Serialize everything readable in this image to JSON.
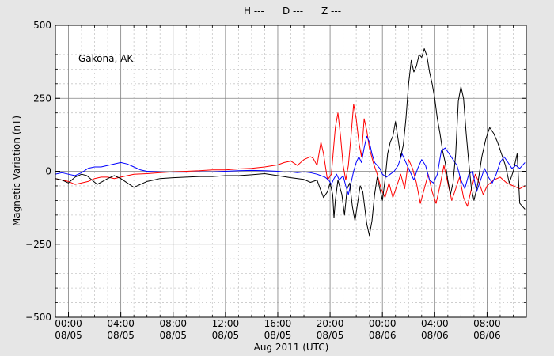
{
  "chart_data": {
    "type": "line",
    "station_label": "Gakona, AK",
    "ylabel": "Magnetic Variation (nT)",
    "xlabel": "Aug 2011 (UTC)",
    "ylim": [
      -500,
      500
    ],
    "yticks": [
      500,
      250,
      0,
      -250,
      -500
    ],
    "ytick_labels": [
      "500",
      "250",
      "0",
      "−250",
      "−500"
    ],
    "xlim_hours": [
      -1,
      35
    ],
    "xticks_hours": [
      0,
      4,
      8,
      12,
      16,
      20,
      24,
      28,
      32
    ],
    "xtick_labels": [
      {
        "time": "00:00",
        "date": "08/05"
      },
      {
        "time": "04:00",
        "date": "08/05"
      },
      {
        "time": "08:00",
        "date": "08/05"
      },
      {
        "time": "12:00",
        "date": "08/05"
      },
      {
        "time": "16:00",
        "date": "08/05"
      },
      {
        "time": "20:00",
        "date": "08/05"
      },
      {
        "time": "00:00",
        "date": "08/06"
      },
      {
        "time": "04:00",
        "date": "08/06"
      },
      {
        "time": "08:00",
        "date": "08/06"
      }
    ],
    "grid": {
      "major": true,
      "minor": true
    },
    "legend_placement": "top-center",
    "series": [
      {
        "name": "H ---",
        "color": "#000000",
        "points": [
          [
            -1,
            -25
          ],
          [
            -0.5,
            -30
          ],
          [
            0,
            -40
          ],
          [
            0.5,
            -20
          ],
          [
            1,
            -10
          ],
          [
            1.4,
            -15
          ],
          [
            1.8,
            -30
          ],
          [
            2.2,
            -45
          ],
          [
            2.6,
            -35
          ],
          [
            3,
            -25
          ],
          [
            3.5,
            -15
          ],
          [
            4,
            -25
          ],
          [
            4.5,
            -40
          ],
          [
            5,
            -55
          ],
          [
            5.5,
            -45
          ],
          [
            6,
            -35
          ],
          [
            6.5,
            -30
          ],
          [
            7,
            -25
          ],
          [
            8,
            -22
          ],
          [
            9,
            -20
          ],
          [
            10,
            -18
          ],
          [
            11,
            -18
          ],
          [
            12,
            -15
          ],
          [
            13,
            -15
          ],
          [
            14,
            -12
          ],
          [
            15,
            -8
          ],
          [
            16,
            -15
          ],
          [
            17,
            -22
          ],
          [
            18,
            -28
          ],
          [
            18.5,
            -38
          ],
          [
            19,
            -30
          ],
          [
            19.2,
            -55
          ],
          [
            19.5,
            -90
          ],
          [
            19.8,
            -70
          ],
          [
            20,
            -40
          ],
          [
            20.2,
            -80
          ],
          [
            20.3,
            -160
          ],
          [
            20.4,
            -100
          ],
          [
            20.6,
            -30
          ],
          [
            20.9,
            -80
          ],
          [
            21.1,
            -150
          ],
          [
            21.3,
            -60
          ],
          [
            21.5,
            -40
          ],
          [
            21.7,
            -120
          ],
          [
            21.9,
            -170
          ],
          [
            22.1,
            -110
          ],
          [
            22.3,
            -50
          ],
          [
            22.5,
            -70
          ],
          [
            22.8,
            -180
          ],
          [
            23,
            -220
          ],
          [
            23.2,
            -170
          ],
          [
            23.4,
            -80
          ],
          [
            23.6,
            -20
          ],
          [
            23.8,
            -60
          ],
          [
            24,
            -100
          ],
          [
            24.2,
            -30
          ],
          [
            24.4,
            60
          ],
          [
            24.6,
            100
          ],
          [
            24.8,
            120
          ],
          [
            25,
            170
          ],
          [
            25.2,
            110
          ],
          [
            25.4,
            50
          ],
          [
            25.6,
            90
          ],
          [
            25.8,
            180
          ],
          [
            26,
            300
          ],
          [
            26.2,
            380
          ],
          [
            26.4,
            340
          ],
          [
            26.6,
            360
          ],
          [
            26.8,
            400
          ],
          [
            27,
            390
          ],
          [
            27.2,
            420
          ],
          [
            27.4,
            395
          ],
          [
            27.6,
            340
          ],
          [
            27.8,
            300
          ],
          [
            28,
            250
          ],
          [
            28.2,
            180
          ],
          [
            28.4,
            130
          ],
          [
            28.6,
            70
          ],
          [
            28.8,
            30
          ],
          [
            29,
            -30
          ],
          [
            29.2,
            -80
          ],
          [
            29.4,
            -40
          ],
          [
            29.6,
            60
          ],
          [
            29.8,
            240
          ],
          [
            30,
            290
          ],
          [
            30.2,
            250
          ],
          [
            30.4,
            130
          ],
          [
            30.6,
            30
          ],
          [
            30.8,
            -60
          ],
          [
            31,
            -100
          ],
          [
            31.3,
            -40
          ],
          [
            31.6,
            50
          ],
          [
            31.9,
            110
          ],
          [
            32.2,
            150
          ],
          [
            32.5,
            130
          ],
          [
            32.8,
            100
          ],
          [
            33.1,
            60
          ],
          [
            33.4,
            20
          ],
          [
            33.7,
            -40
          ],
          [
            34,
            0
          ],
          [
            34.3,
            60
          ],
          [
            34.5,
            -110
          ],
          [
            34.7,
            -120
          ],
          [
            34.9,
            -130
          ]
        ]
      },
      {
        "name": "D ---",
        "color": "#ff0000",
        "points": [
          [
            -1,
            -25
          ],
          [
            -0.5,
            -30
          ],
          [
            0,
            -35
          ],
          [
            0.5,
            -45
          ],
          [
            1,
            -40
          ],
          [
            1.5,
            -35
          ],
          [
            2,
            -25
          ],
          [
            2.5,
            -20
          ],
          [
            3,
            -20
          ],
          [
            3.5,
            -25
          ],
          [
            4,
            -20
          ],
          [
            4.5,
            -15
          ],
          [
            5,
            -10
          ],
          [
            6,
            -8
          ],
          [
            7,
            -5
          ],
          [
            8,
            -2
          ],
          [
            9,
            0
          ],
          [
            10,
            2
          ],
          [
            11,
            5
          ],
          [
            12,
            5
          ],
          [
            13,
            8
          ],
          [
            14,
            10
          ],
          [
            15,
            15
          ],
          [
            16,
            22
          ],
          [
            16.5,
            30
          ],
          [
            17,
            35
          ],
          [
            17.5,
            20
          ],
          [
            18,
            40
          ],
          [
            18.5,
            50
          ],
          [
            18.7,
            45
          ],
          [
            19,
            20
          ],
          [
            19.3,
            100
          ],
          [
            19.5,
            60
          ],
          [
            19.8,
            -30
          ],
          [
            20.1,
            -10
          ],
          [
            20.4,
            150
          ],
          [
            20.6,
            200
          ],
          [
            20.8,
            120
          ],
          [
            21,
            20
          ],
          [
            21.2,
            -30
          ],
          [
            21.4,
            20
          ],
          [
            21.6,
            120
          ],
          [
            21.8,
            230
          ],
          [
            22,
            180
          ],
          [
            22.2,
            100
          ],
          [
            22.4,
            50
          ],
          [
            22.6,
            180
          ],
          [
            22.8,
            140
          ],
          [
            23,
            80
          ],
          [
            23.3,
            30
          ],
          [
            23.6,
            -10
          ],
          [
            23.9,
            -60
          ],
          [
            24.2,
            -90
          ],
          [
            24.5,
            -40
          ],
          [
            24.8,
            -90
          ],
          [
            25.1,
            -50
          ],
          [
            25.4,
            -10
          ],
          [
            25.7,
            -60
          ],
          [
            26,
            40
          ],
          [
            26.3,
            10
          ],
          [
            26.6,
            -40
          ],
          [
            26.9,
            -110
          ],
          [
            27.2,
            -60
          ],
          [
            27.5,
            -10
          ],
          [
            27.8,
            -70
          ],
          [
            28.1,
            -110
          ],
          [
            28.4,
            -50
          ],
          [
            28.7,
            20
          ],
          [
            29,
            -40
          ],
          [
            29.3,
            -100
          ],
          [
            29.6,
            -60
          ],
          [
            29.9,
            -20
          ],
          [
            30.2,
            -90
          ],
          [
            30.5,
            -120
          ],
          [
            30.8,
            -60
          ],
          [
            31.1,
            -10
          ],
          [
            31.4,
            -40
          ],
          [
            31.7,
            -80
          ],
          [
            32,
            -50
          ],
          [
            32.5,
            -30
          ],
          [
            33,
            -20
          ],
          [
            33.5,
            -40
          ],
          [
            34,
            -50
          ],
          [
            34.5,
            -60
          ],
          [
            34.9,
            -50
          ]
        ]
      },
      {
        "name": "Z ---",
        "color": "#0000ff",
        "points": [
          [
            -1,
            -10
          ],
          [
            -0.5,
            -5
          ],
          [
            0,
            -10
          ],
          [
            0.5,
            -15
          ],
          [
            1,
            -5
          ],
          [
            1.5,
            10
          ],
          [
            2,
            15
          ],
          [
            2.5,
            15
          ],
          [
            3,
            20
          ],
          [
            3.5,
            25
          ],
          [
            4,
            30
          ],
          [
            4.5,
            25
          ],
          [
            5,
            15
          ],
          [
            5.5,
            5
          ],
          [
            6,
            0
          ],
          [
            7,
            -2
          ],
          [
            8,
            -3
          ],
          [
            9,
            -3
          ],
          [
            10,
            -2
          ],
          [
            11,
            -2
          ],
          [
            12,
            0
          ],
          [
            13,
            2
          ],
          [
            14,
            3
          ],
          [
            15,
            2
          ],
          [
            16,
            0
          ],
          [
            16.5,
            -3
          ],
          [
            17,
            -2
          ],
          [
            17.5,
            -5
          ],
          [
            18,
            -2
          ],
          [
            18.5,
            -5
          ],
          [
            19,
            -10
          ],
          [
            19.3,
            -15
          ],
          [
            19.6,
            -20
          ],
          [
            19.9,
            -30
          ],
          [
            20.1,
            -45
          ],
          [
            20.3,
            -25
          ],
          [
            20.5,
            -10
          ],
          [
            20.7,
            -30
          ],
          [
            21,
            -15
          ],
          [
            21.2,
            -50
          ],
          [
            21.4,
            -80
          ],
          [
            21.6,
            -40
          ],
          [
            21.8,
            0
          ],
          [
            22,
            30
          ],
          [
            22.2,
            50
          ],
          [
            22.4,
            30
          ],
          [
            22.6,
            80
          ],
          [
            22.8,
            120
          ],
          [
            23,
            100
          ],
          [
            23.2,
            60
          ],
          [
            23.4,
            30
          ],
          [
            23.6,
            20
          ],
          [
            23.8,
            10
          ],
          [
            24,
            -10
          ],
          [
            24.3,
            -20
          ],
          [
            24.6,
            -10
          ],
          [
            24.9,
            0
          ],
          [
            25.2,
            20
          ],
          [
            25.5,
            60
          ],
          [
            25.8,
            30
          ],
          [
            26.1,
            0
          ],
          [
            26.4,
            -30
          ],
          [
            26.7,
            10
          ],
          [
            27,
            40
          ],
          [
            27.3,
            20
          ],
          [
            27.6,
            -30
          ],
          [
            27.9,
            -40
          ],
          [
            28.2,
            -10
          ],
          [
            28.5,
            70
          ],
          [
            28.8,
            80
          ],
          [
            29.1,
            60
          ],
          [
            29.4,
            40
          ],
          [
            29.7,
            20
          ],
          [
            30,
            -30
          ],
          [
            30.3,
            -60
          ],
          [
            30.6,
            -10
          ],
          [
            30.9,
            0
          ],
          [
            31.2,
            -70
          ],
          [
            31.5,
            -30
          ],
          [
            31.8,
            10
          ],
          [
            32.1,
            -20
          ],
          [
            32.4,
            -40
          ],
          [
            32.7,
            -10
          ],
          [
            33,
            30
          ],
          [
            33.3,
            50
          ],
          [
            33.6,
            30
          ],
          [
            33.9,
            10
          ],
          [
            34.2,
            20
          ],
          [
            34.5,
            10
          ],
          [
            34.9,
            30
          ]
        ]
      }
    ]
  }
}
